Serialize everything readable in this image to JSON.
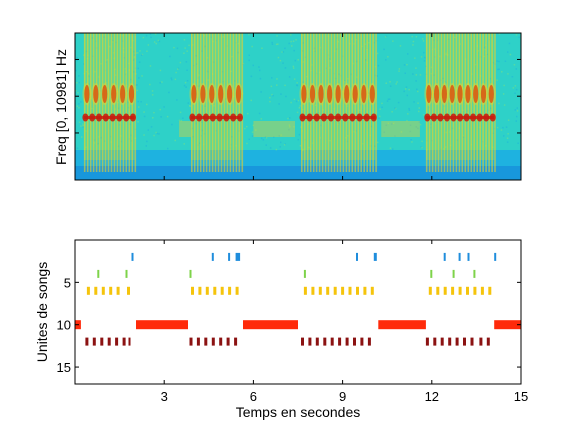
{
  "chart_data": [
    {
      "type": "heatmap",
      "title": "",
      "xlabel": "",
      "ylabel": "Freq [0, 10981] Hz",
      "xlim": [
        0,
        15
      ],
      "colormap": "jet",
      "description_values": {
        "burst_starts": [
          0.3,
          3.9,
          7.6,
          11.8
        ],
        "burst_ends": [
          2.0,
          5.6,
          10.1,
          14.1
        ]
      },
      "colors": {
        "background": "#2ed1c8",
        "low_band": "#1aa7e8",
        "energy": "#ffd21a",
        "peak": "#c81e10"
      }
    },
    {
      "type": "scatter",
      "title": "",
      "xlabel": "Temps en secondes",
      "ylabel": "Unites de songs",
      "xlim": [
        0,
        15
      ],
      "ylim": [
        17,
        0
      ],
      "xticks": [
        3,
        6,
        9,
        12,
        15
      ],
      "yticks": [
        5,
        10,
        15
      ],
      "series": [
        {
          "unit": 2,
          "color": "#1f8ddc",
          "segments": [
            [
              1.9,
              1.95
            ],
            [
              4.6,
              4.65
            ],
            [
              5.15,
              5.2
            ],
            [
              5.4,
              5.55
            ],
            [
              9.45,
              9.5
            ],
            [
              10.05,
              10.15
            ],
            [
              12.4,
              12.45
            ],
            [
              12.9,
              12.95
            ],
            [
              13.2,
              13.25
            ],
            [
              14.1,
              14.15
            ]
          ]
        },
        {
          "unit": 4,
          "color": "#7ed34a",
          "segments": [
            [
              0.75,
              0.8
            ],
            [
              1.7,
              1.75
            ],
            [
              3.85,
              3.9
            ],
            [
              7.7,
              7.75
            ],
            [
              11.95,
              12.0
            ],
            [
              12.7,
              12.75
            ],
            [
              13.4,
              13.45
            ]
          ]
        },
        {
          "unit": 6,
          "color": "#f5c40c",
          "segments": [
            [
              0.4,
              0.5
            ],
            [
              0.65,
              0.75
            ],
            [
              0.9,
              1.0
            ],
            [
              1.15,
              1.25
            ],
            [
              1.4,
              1.5
            ],
            [
              1.75,
              1.85
            ],
            [
              3.9,
              4.0
            ],
            [
              4.15,
              4.25
            ],
            [
              4.4,
              4.5
            ],
            [
              4.65,
              4.75
            ],
            [
              4.9,
              5.0
            ],
            [
              5.15,
              5.25
            ],
            [
              5.4,
              5.5
            ],
            [
              7.7,
              7.8
            ],
            [
              7.95,
              8.05
            ],
            [
              8.2,
              8.3
            ],
            [
              8.45,
              8.55
            ],
            [
              8.7,
              8.8
            ],
            [
              8.95,
              9.05
            ],
            [
              9.2,
              9.3
            ],
            [
              9.45,
              9.55
            ],
            [
              9.7,
              9.8
            ],
            [
              9.95,
              10.05
            ],
            [
              11.9,
              12.0
            ],
            [
              12.15,
              12.25
            ],
            [
              12.4,
              12.5
            ],
            [
              12.65,
              12.75
            ],
            [
              12.9,
              13.0
            ],
            [
              13.15,
              13.25
            ],
            [
              13.4,
              13.5
            ],
            [
              13.65,
              13.75
            ],
            [
              13.9,
              14.0
            ]
          ]
        },
        {
          "unit": 10,
          "color": "#ff2a0a",
          "segments": [
            [
              0.0,
              0.2
            ],
            [
              2.05,
              3.8
            ],
            [
              5.65,
              7.5
            ],
            [
              10.2,
              11.8
            ],
            [
              14.1,
              15.0
            ]
          ]
        },
        {
          "unit": 12,
          "color": "#8b1212",
          "segments": [
            [
              0.35,
              0.45
            ],
            [
              0.6,
              0.7
            ],
            [
              0.85,
              0.95
            ],
            [
              1.1,
              1.2
            ],
            [
              1.35,
              1.45
            ],
            [
              1.6,
              1.7
            ],
            [
              1.8,
              1.85
            ],
            [
              3.85,
              3.95
            ],
            [
              4.1,
              4.2
            ],
            [
              4.35,
              4.45
            ],
            [
              4.6,
              4.7
            ],
            [
              4.85,
              4.95
            ],
            [
              5.1,
              5.2
            ],
            [
              5.35,
              5.45
            ],
            [
              7.6,
              7.7
            ],
            [
              7.85,
              7.95
            ],
            [
              8.1,
              8.2
            ],
            [
              8.35,
              8.45
            ],
            [
              8.6,
              8.7
            ],
            [
              8.85,
              8.95
            ],
            [
              9.1,
              9.2
            ],
            [
              9.35,
              9.45
            ],
            [
              9.6,
              9.7
            ],
            [
              9.85,
              9.95
            ],
            [
              11.8,
              11.9
            ],
            [
              12.05,
              12.15
            ],
            [
              12.3,
              12.4
            ],
            [
              12.55,
              12.65
            ],
            [
              12.8,
              12.9
            ],
            [
              13.05,
              13.15
            ],
            [
              13.3,
              13.4
            ],
            [
              13.6,
              13.7
            ],
            [
              13.85,
              13.95
            ]
          ]
        }
      ]
    }
  ]
}
